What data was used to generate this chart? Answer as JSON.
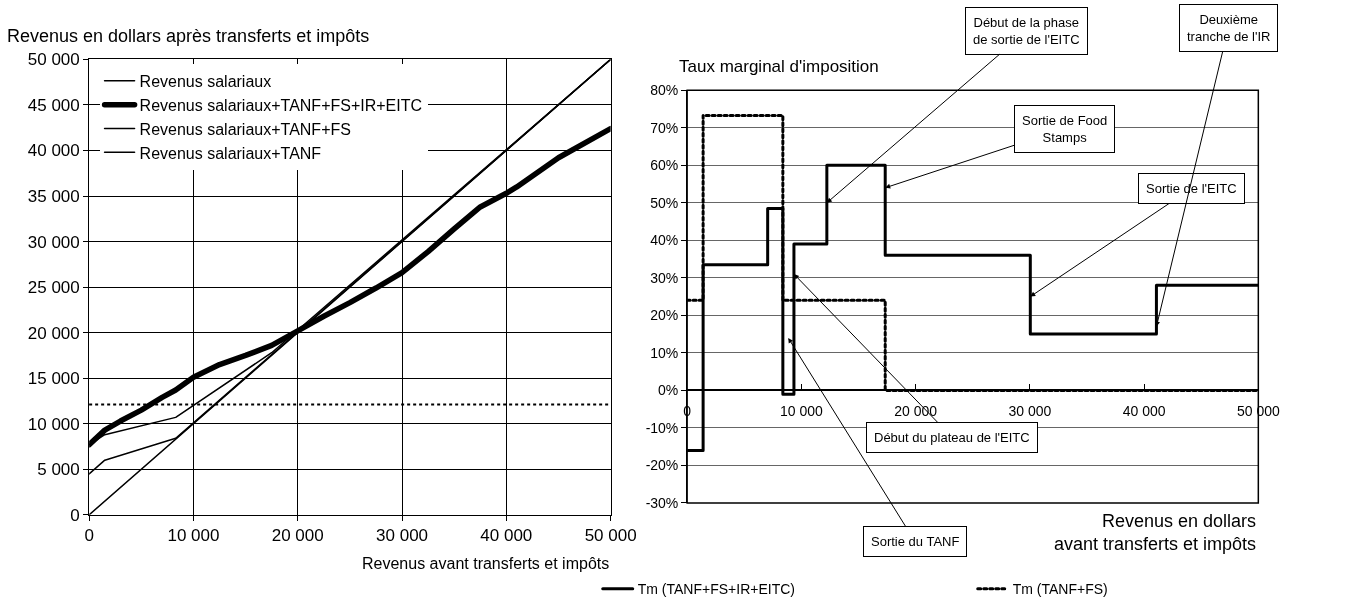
{
  "chart_data": [
    {
      "type": "line",
      "ylabel": "Revenus en dollars après transferts et impôts",
      "xlabel": "Revenus avant transferts et impôts",
      "xlim": [
        0,
        50000
      ],
      "ylim": [
        0,
        50000
      ],
      "xticks": [
        0,
        {
          "value": 10000,
          "label": "10 000"
        },
        {
          "value": 20000,
          "label": "20 000"
        },
        {
          "value": 30000,
          "label": "30 000"
        },
        {
          "value": 40000,
          "label": "40 000"
        },
        {
          "value": 50000,
          "label": "50 000"
        }
      ],
      "yticks": [
        0,
        {
          "value": 5000,
          "label": "5 000"
        },
        {
          "value": 10000,
          "label": "10 000"
        },
        {
          "value": 15000,
          "label": "15 000"
        },
        {
          "value": 20000,
          "label": "20 000"
        },
        {
          "value": 25000,
          "label": "25 000"
        },
        {
          "value": 30000,
          "label": "30 000"
        },
        {
          "value": 35000,
          "label": "35 000"
        },
        {
          "value": 40000,
          "label": "40 000"
        },
        {
          "value": 45000,
          "label": "45 000"
        },
        {
          "value": 50000,
          "label": "50 000"
        }
      ],
      "grid": true,
      "legend": "top left",
      "line_style": "solid",
      "series": [
        {
          "name": "Revenus salariaux",
          "color": "#000000",
          "x": [
            0,
            50000
          ],
          "values": [
            0,
            50000
          ]
        },
        {
          "name": "Revenus salariaux+TANF+FS+IR+EITC",
          "color": "#000000",
          "x": [
            0,
            1500,
            3000,
            5000,
            7000,
            8300,
            10000,
            12500,
            15000,
            17500,
            20000,
            22500,
            25000,
            27500,
            30000,
            32500,
            35000,
            37500,
            40000,
            41000,
            45000,
            50000
          ],
          "values": [
            7700,
            9300,
            10300,
            11500,
            12900,
            13700,
            15100,
            16500,
            17500,
            18600,
            20200,
            21800,
            23300,
            24900,
            26600,
            28900,
            31400,
            33800,
            35300,
            36000,
            39200,
            42400
          ]
        },
        {
          "name": "Revenus salariaux+TANF+FS",
          "color": "#000000",
          "x": [
            0,
            1500,
            8300,
            17500,
            50000
          ],
          "values": [
            7700,
            8800,
            10700,
            17800,
            50000
          ]
        },
        {
          "name": "Revenus salariaux+TANF",
          "color": "#000000",
          "x": [
            0,
            1500,
            8300,
            50000
          ],
          "values": [
            4500,
            6000,
            8400,
            50000
          ]
        }
      ],
      "ref_lines": [
        {
          "axis": "y",
          "value": 12100,
          "line_style": "dotted",
          "color": "#000000"
        }
      ]
    },
    {
      "type": "step",
      "ylabel": "Taux marginal d'imposition",
      "xlabel": "Revenus en dollars\navant transferts et impôts",
      "xlim": [
        0,
        50000
      ],
      "ylim": [
        -30,
        80
      ],
      "xticks": [
        0,
        {
          "value": 10000,
          "label": "10 000"
        },
        {
          "value": 20000,
          "label": "20 000"
        },
        {
          "value": 30000,
          "label": "30 000"
        },
        {
          "value": 40000,
          "label": "40 000"
        },
        {
          "value": 50000,
          "label": "50 000"
        }
      ],
      "yticks": [
        {
          "value": -30,
          "label": "-30%"
        },
        {
          "value": -20,
          "label": "-20%"
        },
        {
          "value": -10,
          "label": "-10%"
        },
        {
          "value": 0,
          "label": "0%"
        },
        {
          "value": 10,
          "label": "10%"
        },
        {
          "value": 20,
          "label": "20%"
        },
        {
          "value": 30,
          "label": "30%"
        },
        {
          "value": 40,
          "label": "40%"
        },
        {
          "value": 50,
          "label": "50%"
        },
        {
          "value": 60,
          "label": "60%"
        },
        {
          "value": 70,
          "label": "70%"
        },
        {
          "value": 80,
          "label": "80%"
        }
      ],
      "grid": "y",
      "legend": "bottom",
      "series": [
        {
          "name": "Tm (TANF+FS+IR+EITC)",
          "color": "#000000",
          "line_style": "solid",
          "x": [
            0,
            1400,
            7050,
            8380,
            9350,
            12230,
            17340,
            30040,
            41080,
            50000
          ],
          "values": [
            -16,
            33.5,
            48.5,
            -1,
            39,
            60,
            36,
            15,
            28,
            28
          ]
        },
        {
          "name": "Tm (TANF+FS)",
          "color": "#000000",
          "line_style": "dotted",
          "x": [
            0,
            1400,
            8380,
            17340,
            50000
          ],
          "values": [
            24,
            73.3,
            24,
            0,
            0
          ]
        }
      ],
      "annotations": [
        {
          "text": "Début de la phase\nde sortie de l'EITC",
          "x": 12230,
          "y": 50
        },
        {
          "text": "Sortie de Food\nStamps",
          "x": 17340,
          "y": 54
        },
        {
          "text": "Sortie de l'EITC",
          "x": 30040,
          "y": 25
        },
        {
          "text": "Deuxième\ntranche de l'IR",
          "x": 41080,
          "y": 17
        },
        {
          "text": "Début du plateau de l'EITC",
          "x": 9350,
          "y": 31
        },
        {
          "text": "Sortie du TANF",
          "x": 8850,
          "y": 14
        }
      ]
    }
  ]
}
